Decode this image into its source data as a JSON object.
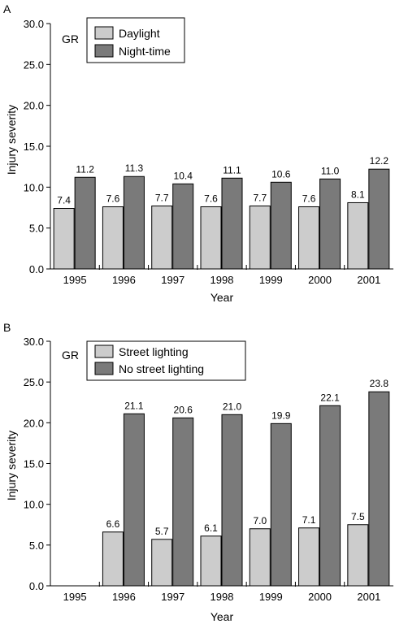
{
  "chart_data": [
    {
      "type": "bar",
      "panel_label": "A",
      "inset_label": "GR",
      "categories": [
        "1995",
        "1996",
        "1997",
        "1998",
        "1999",
        "2000",
        "2001"
      ],
      "series": [
        {
          "name": "Daylight",
          "color": "#cccccc",
          "values": [
            7.4,
            7.6,
            7.7,
            7.6,
            7.7,
            7.6,
            8.1
          ]
        },
        {
          "name": "Night-time",
          "color": "#7a7a7a",
          "values": [
            11.2,
            11.3,
            10.4,
            11.1,
            10.6,
            11.0,
            12.2
          ]
        }
      ],
      "data_labels": {
        "Daylight": [
          "7.4",
          "7.6",
          "7.7",
          "7.6",
          "7.7",
          "7.6",
          "8.1"
        ],
        "Night-time": [
          "11.2",
          "11.3",
          "10.4",
          "11.1",
          "10.6",
          "11.0",
          "12.2"
        ]
      },
      "xlabel": "Year",
      "ylabel": "Injury severity",
      "ylim": [
        0,
        30
      ],
      "yticks": [
        "0.0",
        "5.0",
        "10.0",
        "15.0",
        "20.0",
        "25.0",
        "30.0"
      ],
      "legend": "top-left",
      "grid": false
    },
    {
      "type": "bar",
      "panel_label": "B",
      "inset_label": "GR",
      "categories": [
        "1995",
        "1996",
        "1997",
        "1998",
        "1999",
        "2000",
        "2001"
      ],
      "series": [
        {
          "name": "Street lighting",
          "color": "#cccccc",
          "values": [
            null,
            6.6,
            5.7,
            6.1,
            7.0,
            7.1,
            7.5
          ]
        },
        {
          "name": "No street lighting",
          "color": "#7a7a7a",
          "values": [
            null,
            21.1,
            20.6,
            21.0,
            19.9,
            22.1,
            23.8
          ]
        }
      ],
      "data_labels": {
        "Street lighting": [
          null,
          "6.6",
          "5.7",
          "6.1",
          "7.0",
          "7.1",
          "7.5"
        ],
        "No street lighting": [
          null,
          "21.1",
          "20.6",
          "21.0",
          "19.9",
          "22.1",
          "23.8"
        ]
      },
      "xlabel": "Year",
      "ylabel": "Injury severity",
      "ylim": [
        0,
        30
      ],
      "yticks": [
        "0.0",
        "5.0",
        "10.0",
        "15.0",
        "20.0",
        "25.0",
        "30.0"
      ],
      "legend": "top-left",
      "grid": false
    }
  ]
}
